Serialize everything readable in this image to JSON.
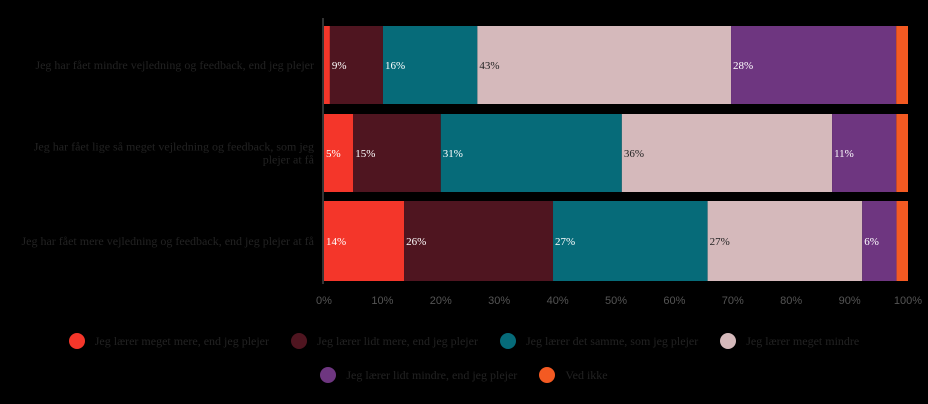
{
  "chart_data": {
    "type": "bar",
    "orientation": "horizontal",
    "stacked": true,
    "title": "",
    "xlabel": "",
    "ylabel": "",
    "xlim": [
      0,
      100
    ],
    "x_ticks": [
      "0%",
      "10%",
      "20%",
      "30%",
      "40%",
      "50%",
      "60%",
      "70%",
      "80%",
      "90%",
      "100%"
    ],
    "categories": [
      "Jeg har fået mindre vejledning og feedback, end jeg plejer",
      "Jeg har fået lige så meget vejledning og feedback, som jeg plejer at få",
      "Jeg har fået mere vejledning og feedback, end jeg plejer at få"
    ],
    "series": [
      {
        "name": "Jeg lærer meget mere, end jeg plejer",
        "color": "#f4362a",
        "text_color": "#ffffff",
        "values": [
          1,
          5,
          14
        ],
        "labels": [
          "",
          "5%",
          "14%"
        ]
      },
      {
        "name": "Jeg lærer lidt mere, end jeg plejer",
        "color": "#4f1520",
        "text_color": "#ffffff",
        "values": [
          9,
          15,
          26
        ],
        "labels": [
          "9%",
          "15%",
          "26%"
        ]
      },
      {
        "name": "Jeg lærer det samme, som jeg plejer",
        "color": "#066b79",
        "text_color": "#ffffff",
        "values": [
          16,
          31,
          27
        ],
        "labels": [
          "16%",
          "31%",
          "27%"
        ]
      },
      {
        "name": "Jeg lærer meget mindre",
        "color": "#d5b9bb",
        "text_color": "#222222",
        "values": [
          43,
          36,
          27
        ],
        "labels": [
          "43%",
          "36%",
          "27%"
        ]
      },
      {
        "name": "Jeg lærer lidt mindre, end jeg plejer",
        "color": "#6e3680",
        "text_color": "#ffffff",
        "values": [
          28,
          11,
          6
        ],
        "labels": [
          "28%",
          "11%",
          "6%"
        ]
      },
      {
        "name": "Ved ikke",
        "color": "#f45a22",
        "text_color": "#ffffff",
        "values": [
          2,
          2,
          2
        ],
        "labels": [
          "",
          "",
          ""
        ]
      }
    ],
    "grid": false,
    "legend_position": "bottom"
  }
}
